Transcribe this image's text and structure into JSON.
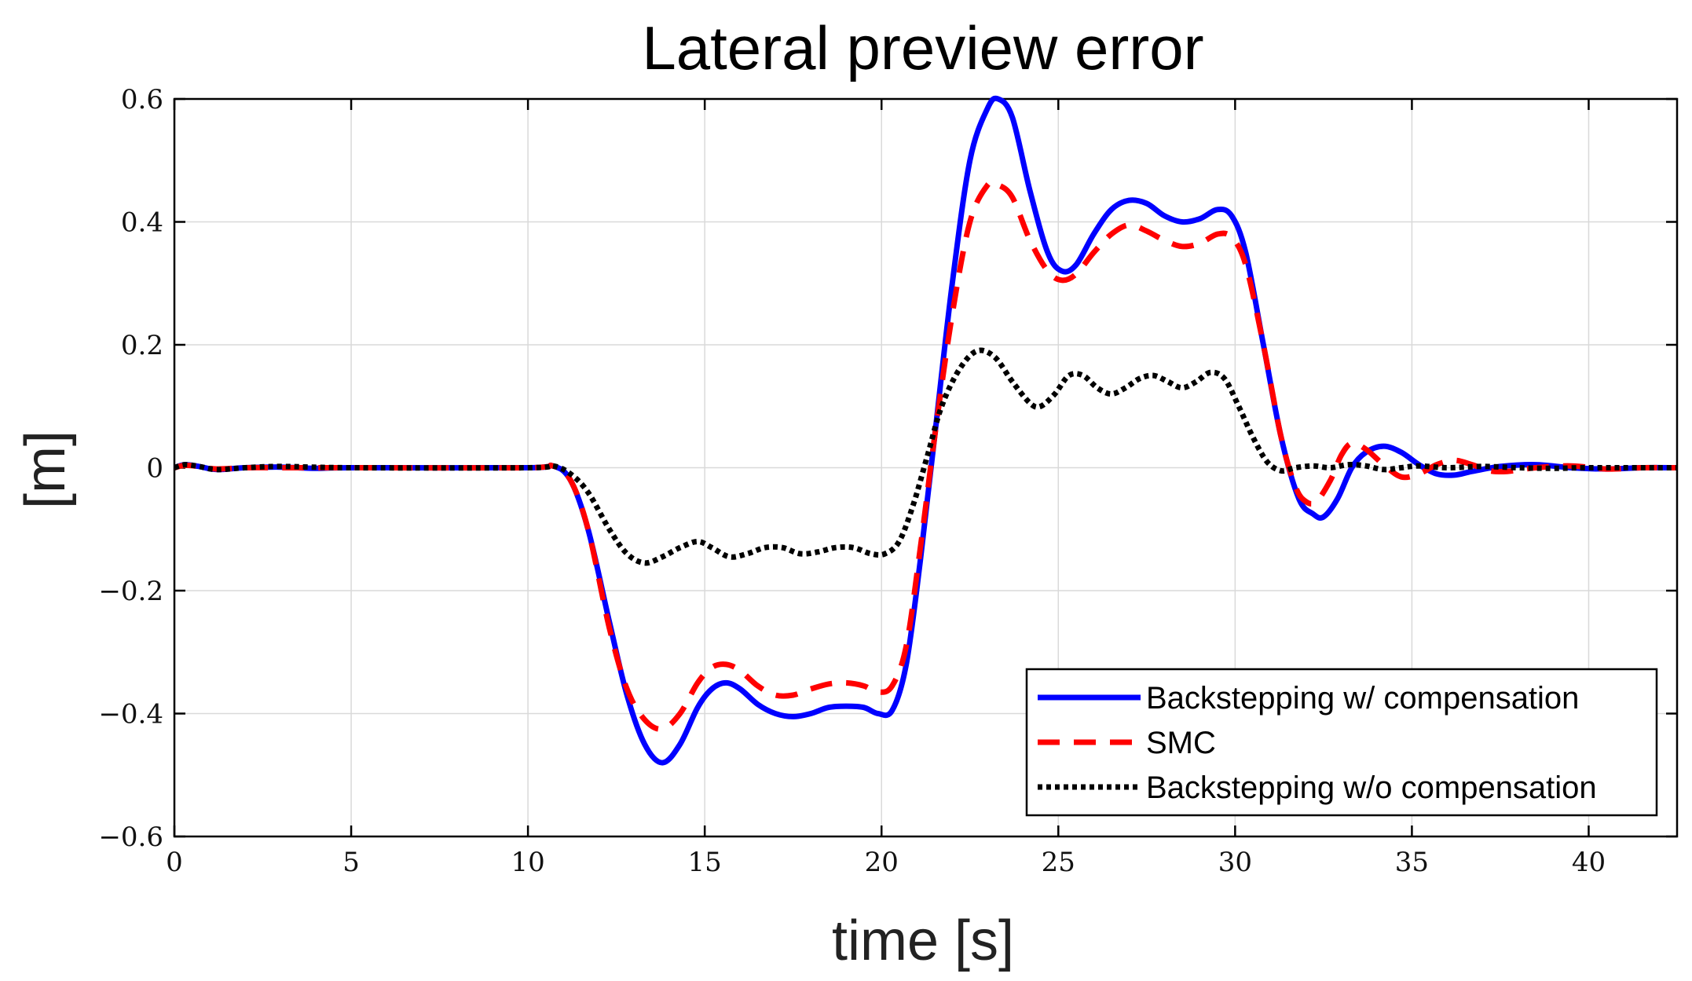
{
  "chart_data": {
    "type": "line",
    "title": "Lateral preview error",
    "xlabel": "time [s]",
    "ylabel": "[m]",
    "xlim": [
      0,
      42.5
    ],
    "ylim": [
      -0.6,
      0.6
    ],
    "x_ticks": [
      0,
      5,
      10,
      15,
      20,
      25,
      30,
      35,
      40
    ],
    "x_tick_labels": [
      "0",
      "5",
      "10",
      "15",
      "20",
      "25",
      "30",
      "35",
      "40"
    ],
    "y_ticks": [
      -0.6,
      -0.4,
      -0.2,
      0,
      0.2,
      0.4,
      0.6
    ],
    "y_tick_labels": [
      "−0.6",
      "−0.4",
      "−0.2",
      "0",
      "0.2",
      "0.4",
      "0.6"
    ],
    "grid": true,
    "legend_position": "bottom-right",
    "series": [
      {
        "name": "Backstepping w/ compensation",
        "color": "#0000ff",
        "style": "solid",
        "points": [
          [
            0,
            0
          ],
          [
            0.3,
            0.005
          ],
          [
            0.7,
            0.002
          ],
          [
            1.2,
            -0.003
          ],
          [
            2,
            0
          ],
          [
            3,
            0.001
          ],
          [
            4,
            -0.001
          ],
          [
            5,
            0
          ],
          [
            10,
            0
          ],
          [
            10.7,
            0.003
          ],
          [
            11.2,
            -0.02
          ],
          [
            11.7,
            -0.1
          ],
          [
            12.3,
            -0.25
          ],
          [
            12.8,
            -0.37
          ],
          [
            13.3,
            -0.45
          ],
          [
            13.8,
            -0.48
          ],
          [
            14.3,
            -0.45
          ],
          [
            14.8,
            -0.39
          ],
          [
            15.2,
            -0.36
          ],
          [
            15.6,
            -0.35
          ],
          [
            16,
            -0.36
          ],
          [
            16.5,
            -0.385
          ],
          [
            17,
            -0.4
          ],
          [
            17.5,
            -0.405
          ],
          [
            18,
            -0.4
          ],
          [
            18.5,
            -0.39
          ],
          [
            19,
            -0.388
          ],
          [
            19.5,
            -0.39
          ],
          [
            19.9,
            -0.4
          ],
          [
            20.3,
            -0.395
          ],
          [
            20.7,
            -0.32
          ],
          [
            21.1,
            -0.15
          ],
          [
            21.5,
            0.05
          ],
          [
            22,
            0.3
          ],
          [
            22.5,
            0.5
          ],
          [
            23,
            0.585
          ],
          [
            23.3,
            0.6
          ],
          [
            23.7,
            0.57
          ],
          [
            24.2,
            0.45
          ],
          [
            24.7,
            0.35
          ],
          [
            25.1,
            0.32
          ],
          [
            25.5,
            0.33
          ],
          [
            26,
            0.38
          ],
          [
            26.5,
            0.42
          ],
          [
            27,
            0.435
          ],
          [
            27.5,
            0.43
          ],
          [
            28,
            0.41
          ],
          [
            28.5,
            0.4
          ],
          [
            29,
            0.405
          ],
          [
            29.5,
            0.42
          ],
          [
            29.9,
            0.41
          ],
          [
            30.3,
            0.35
          ],
          [
            30.8,
            0.2
          ],
          [
            31.3,
            0.05
          ],
          [
            31.8,
            -0.05
          ],
          [
            32.2,
            -0.075
          ],
          [
            32.5,
            -0.08
          ],
          [
            32.9,
            -0.05
          ],
          [
            33.3,
            0
          ],
          [
            33.7,
            0.025
          ],
          [
            34.2,
            0.035
          ],
          [
            34.7,
            0.025
          ],
          [
            35.2,
            0.005
          ],
          [
            35.7,
            -0.01
          ],
          [
            36.2,
            -0.012
          ],
          [
            36.7,
            -0.006
          ],
          [
            37.5,
            0.002
          ],
          [
            38.5,
            0.005
          ],
          [
            39.5,
            0
          ],
          [
            40.5,
            -0.002
          ],
          [
            41.5,
            0
          ],
          [
            42.5,
            0
          ]
        ]
      },
      {
        "name": "SMC",
        "color": "#ff0000",
        "style": "dashed",
        "points": [
          [
            0,
            0
          ],
          [
            0.3,
            0.004
          ],
          [
            0.7,
            0.002
          ],
          [
            1.2,
            -0.002
          ],
          [
            2,
            0
          ],
          [
            3,
            0
          ],
          [
            5,
            0
          ],
          [
            10,
            0
          ],
          [
            10.7,
            0.003
          ],
          [
            11.2,
            -0.02
          ],
          [
            11.7,
            -0.1
          ],
          [
            12.3,
            -0.26
          ],
          [
            12.8,
            -0.36
          ],
          [
            13.3,
            -0.41
          ],
          [
            13.8,
            -0.425
          ],
          [
            14.3,
            -0.4
          ],
          [
            14.8,
            -0.35
          ],
          [
            15.2,
            -0.325
          ],
          [
            15.6,
            -0.32
          ],
          [
            16,
            -0.33
          ],
          [
            16.5,
            -0.355
          ],
          [
            17,
            -0.37
          ],
          [
            17.5,
            -0.37
          ],
          [
            18,
            -0.36
          ],
          [
            18.5,
            -0.352
          ],
          [
            19,
            -0.35
          ],
          [
            19.5,
            -0.355
          ],
          [
            19.9,
            -0.365
          ],
          [
            20.3,
            -0.355
          ],
          [
            20.7,
            -0.29
          ],
          [
            21.1,
            -0.13
          ],
          [
            21.5,
            0.05
          ],
          [
            22,
            0.25
          ],
          [
            22.5,
            0.4
          ],
          [
            23,
            0.46
          ],
          [
            23.3,
            0.46
          ],
          [
            23.7,
            0.44
          ],
          [
            24.2,
            0.37
          ],
          [
            24.7,
            0.32
          ],
          [
            25.1,
            0.305
          ],
          [
            25.5,
            0.315
          ],
          [
            26,
            0.35
          ],
          [
            26.5,
            0.38
          ],
          [
            27,
            0.395
          ],
          [
            27.5,
            0.385
          ],
          [
            28,
            0.37
          ],
          [
            28.5,
            0.36
          ],
          [
            29,
            0.365
          ],
          [
            29.5,
            0.38
          ],
          [
            29.9,
            0.375
          ],
          [
            30.3,
            0.33
          ],
          [
            30.8,
            0.2
          ],
          [
            31.3,
            0.05
          ],
          [
            31.7,
            -0.03
          ],
          [
            32,
            -0.055
          ],
          [
            32.3,
            -0.055
          ],
          [
            32.7,
            -0.02
          ],
          [
            33,
            0.02
          ],
          [
            33.3,
            0.04
          ],
          [
            33.7,
            0.03
          ],
          [
            34.2,
            0.005
          ],
          [
            34.7,
            -0.015
          ],
          [
            35.2,
            -0.01
          ],
          [
            35.7,
            0.005
          ],
          [
            36.2,
            0.012
          ],
          [
            36.7,
            0.005
          ],
          [
            37.2,
            -0.005
          ],
          [
            37.7,
            -0.006
          ],
          [
            38.5,
            0
          ],
          [
            39.5,
            0.003
          ],
          [
            40.5,
            -0.002
          ],
          [
            41.5,
            0
          ],
          [
            42.5,
            0
          ]
        ]
      },
      {
        "name": "Backstepping w/o compensation",
        "color": "#000000",
        "style": "dotted",
        "points": [
          [
            0,
            0
          ],
          [
            0.3,
            0.005
          ],
          [
            0.7,
            0.002
          ],
          [
            1.2,
            -0.003
          ],
          [
            2,
            0
          ],
          [
            3,
            0.002
          ],
          [
            5,
            0
          ],
          [
            10,
            0
          ],
          [
            10.7,
            0.003
          ],
          [
            11.2,
            -0.01
          ],
          [
            11.7,
            -0.04
          ],
          [
            12.3,
            -0.1
          ],
          [
            12.8,
            -0.14
          ],
          [
            13.3,
            -0.155
          ],
          [
            13.8,
            -0.145
          ],
          [
            14.3,
            -0.13
          ],
          [
            14.8,
            -0.12
          ],
          [
            15.2,
            -0.13
          ],
          [
            15.7,
            -0.145
          ],
          [
            16.2,
            -0.14
          ],
          [
            16.7,
            -0.13
          ],
          [
            17.2,
            -0.13
          ],
          [
            17.7,
            -0.14
          ],
          [
            18.2,
            -0.137
          ],
          [
            18.7,
            -0.13
          ],
          [
            19.2,
            -0.13
          ],
          [
            19.7,
            -0.14
          ],
          [
            20.1,
            -0.14
          ],
          [
            20.5,
            -0.12
          ],
          [
            20.9,
            -0.06
          ],
          [
            21.3,
            0.02
          ],
          [
            21.7,
            0.1
          ],
          [
            22.2,
            0.16
          ],
          [
            22.7,
            0.19
          ],
          [
            23.2,
            0.18
          ],
          [
            23.7,
            0.14
          ],
          [
            24.2,
            0.105
          ],
          [
            24.5,
            0.1
          ],
          [
            24.9,
            0.12
          ],
          [
            25.3,
            0.15
          ],
          [
            25.7,
            0.15
          ],
          [
            26.1,
            0.13
          ],
          [
            26.5,
            0.12
          ],
          [
            26.9,
            0.13
          ],
          [
            27.3,
            0.145
          ],
          [
            27.7,
            0.15
          ],
          [
            28.1,
            0.14
          ],
          [
            28.5,
            0.13
          ],
          [
            28.9,
            0.14
          ],
          [
            29.3,
            0.155
          ],
          [
            29.7,
            0.145
          ],
          [
            30.1,
            0.1
          ],
          [
            30.5,
            0.05
          ],
          [
            30.9,
            0.01
          ],
          [
            31.3,
            -0.005
          ],
          [
            31.7,
            0
          ],
          [
            32.2,
            0.003
          ],
          [
            32.7,
            0
          ],
          [
            33.2,
            0.005
          ],
          [
            33.7,
            0.003
          ],
          [
            34.2,
            -0.003
          ],
          [
            34.7,
            0
          ],
          [
            35.2,
            0.003
          ],
          [
            36,
            0
          ],
          [
            37,
            0.002
          ],
          [
            38,
            0
          ],
          [
            39,
            -0.001
          ],
          [
            40,
            0
          ],
          [
            42.5,
            0
          ]
        ]
      }
    ]
  }
}
